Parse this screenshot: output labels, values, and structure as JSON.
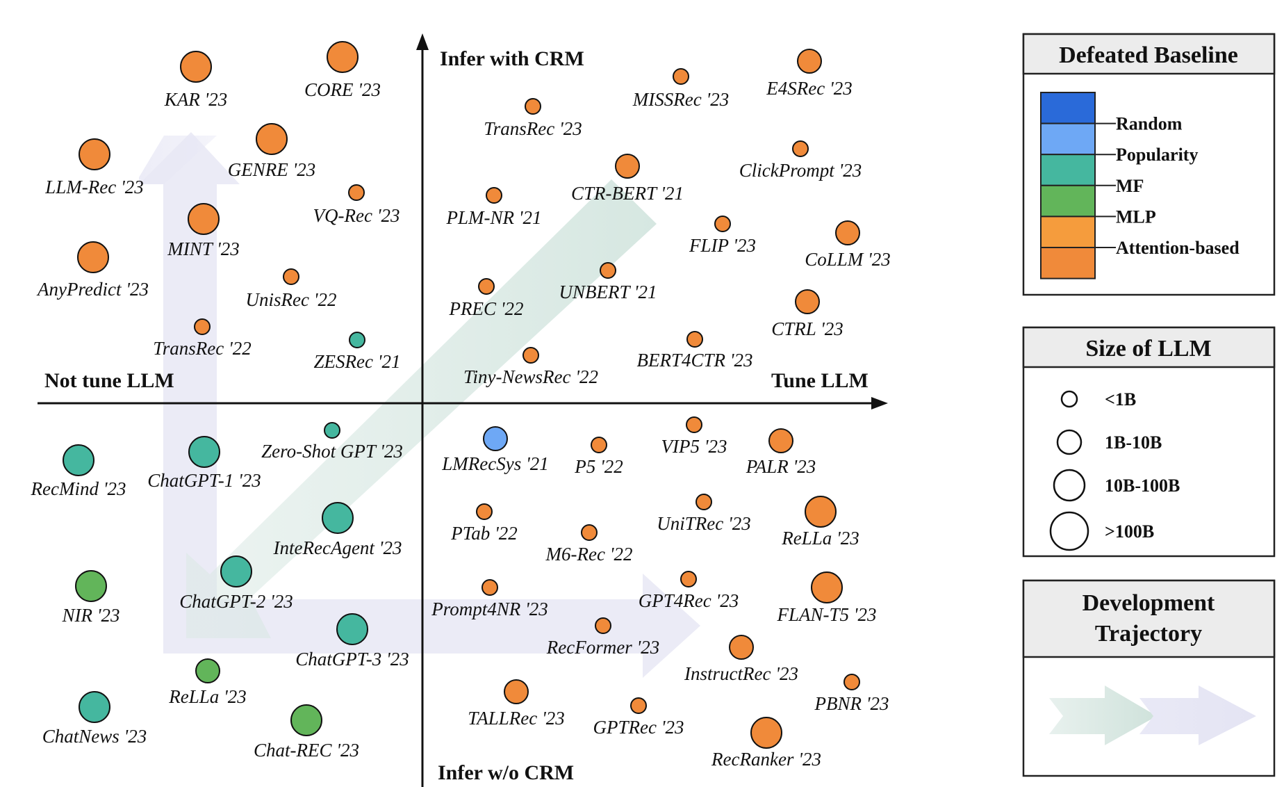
{
  "axes": {
    "top": "Infer with CRM",
    "bottom": "Infer w/o CRM",
    "left": "Not tune LLM",
    "right": "Tune LLM"
  },
  "colors": {
    "Random": "#2a6ad9",
    "Popularity": "#6ea8f5",
    "MF": "#45b79f",
    "MLP": "#62b55a",
    "Attention-based": "#f59c3d",
    "Other": "#f08a3a"
  },
  "legend_baseline": {
    "title": "Defeated Baseline",
    "items": [
      "Random",
      "Popularity",
      "MF",
      "MLP",
      "Attention-based"
    ]
  },
  "legend_size": {
    "title": "Size of LLM",
    "items": [
      "<1B",
      "1B-10B",
      "10B-100B",
      ">100B"
    ]
  },
  "legend_trajectory": {
    "title_line1": "Development",
    "title_line2": "Trajectory"
  },
  "models": [
    {
      "label": "KAR '23",
      "color": "Other",
      "size": "10B-100B"
    },
    {
      "label": "CORE '23",
      "color": "Other",
      "size": "10B-100B"
    },
    {
      "label": "LLM-Rec '23",
      "color": "Other",
      "size": "10B-100B"
    },
    {
      "label": "GENRE '23",
      "color": "Other",
      "size": "10B-100B"
    },
    {
      "label": "VQ-Rec '23",
      "color": "Other",
      "size": "<1B"
    },
    {
      "label": "MINT '23",
      "color": "Other",
      "size": "10B-100B"
    },
    {
      "label": "AnyPredict '23",
      "color": "Other",
      "size": "10B-100B"
    },
    {
      "label": "UnisRec '22",
      "color": "Other",
      "size": "<1B"
    },
    {
      "label": "TransRec '22",
      "color": "Other",
      "size": "<1B"
    },
    {
      "label": "ZESRec '21",
      "color": "MF",
      "size": "<1B"
    },
    {
      "label": "TransRec '23",
      "color": "Other",
      "size": "<1B"
    },
    {
      "label": "MISSRec '23",
      "color": "Other",
      "size": "<1B"
    },
    {
      "label": "E4SRec '23",
      "color": "Other",
      "size": "1B-10B"
    },
    {
      "label": "ClickPrompt '23",
      "color": "Other",
      "size": "<1B"
    },
    {
      "label": "CTR-BERT '21",
      "color": "Other",
      "size": "1B-10B"
    },
    {
      "label": "PLM-NR '21",
      "color": "Other",
      "size": "<1B"
    },
    {
      "label": "FLIP '23",
      "color": "Other",
      "size": "<1B"
    },
    {
      "label": "CoLLM '23",
      "color": "Other",
      "size": "1B-10B"
    },
    {
      "label": "UNBERT '21",
      "color": "Other",
      "size": "<1B"
    },
    {
      "label": "PREC '22",
      "color": "Other",
      "size": "<1B"
    },
    {
      "label": "CTRL '23",
      "color": "Other",
      "size": "1B-10B"
    },
    {
      "label": "BERT4CTR '23",
      "color": "Other",
      "size": "<1B"
    },
    {
      "label": "Tiny-NewsRec '22",
      "color": "Other",
      "size": "<1B"
    },
    {
      "label": "RecMind '23",
      "color": "MF",
      "size": "10B-100B"
    },
    {
      "label": "ChatGPT-1 '23",
      "color": "MF",
      "size": "10B-100B"
    },
    {
      "label": "Zero-Shot GPT '23",
      "color": "MF",
      "size": "<1B"
    },
    {
      "label": "InteRecAgent '23",
      "color": "MF",
      "size": "10B-100B"
    },
    {
      "label": "NIR '23",
      "color": "MLP",
      "size": "10B-100B"
    },
    {
      "label": "ChatGPT-2 '23",
      "color": "MF",
      "size": "10B-100B"
    },
    {
      "label": "ChatGPT-3 '23",
      "color": "MF",
      "size": "10B-100B"
    },
    {
      "label": "ReLLa '23",
      "color": "MLP",
      "size": "1B-10B"
    },
    {
      "label": "ChatNews '23",
      "color": "MF",
      "size": "10B-100B"
    },
    {
      "label": "Chat-REC '23",
      "color": "MLP",
      "size": "10B-100B"
    },
    {
      "label": "LMRecSys '21",
      "color": "Popularity",
      "size": "1B-10B"
    },
    {
      "label": "P5 '22",
      "color": "Other",
      "size": "<1B"
    },
    {
      "label": "VIP5 '23",
      "color": "Other",
      "size": "<1B"
    },
    {
      "label": "PALR '23",
      "color": "Other",
      "size": "1B-10B"
    },
    {
      "label": "PTab '22",
      "color": "Other",
      "size": "<1B"
    },
    {
      "label": "M6-Rec '22",
      "color": "Other",
      "size": "<1B"
    },
    {
      "label": "UniTRec '23",
      "color": "Other",
      "size": "<1B"
    },
    {
      "label": "ReLLa '23",
      "color": "Other",
      "size": "10B-100B"
    },
    {
      "label": "Prompt4NR '23",
      "color": "Other",
      "size": "<1B"
    },
    {
      "label": "GPT4Rec '23",
      "color": "Other",
      "size": "<1B"
    },
    {
      "label": "FLAN-T5 '23",
      "color": "Other",
      "size": "10B-100B"
    },
    {
      "label": "RecFormer '23",
      "color": "Other",
      "size": "<1B"
    },
    {
      "label": "InstructRec '23",
      "color": "Other",
      "size": "1B-10B"
    },
    {
      "label": "PBNR '23",
      "color": "Other",
      "size": "<1B"
    },
    {
      "label": "TALLRec '23",
      "color": "Other",
      "size": "1B-10B"
    },
    {
      "label": "GPTRec '23",
      "color": "Other",
      "size": "<1B"
    },
    {
      "label": "RecRanker '23",
      "color": "Other",
      "size": "10B-100B"
    }
  ]
}
